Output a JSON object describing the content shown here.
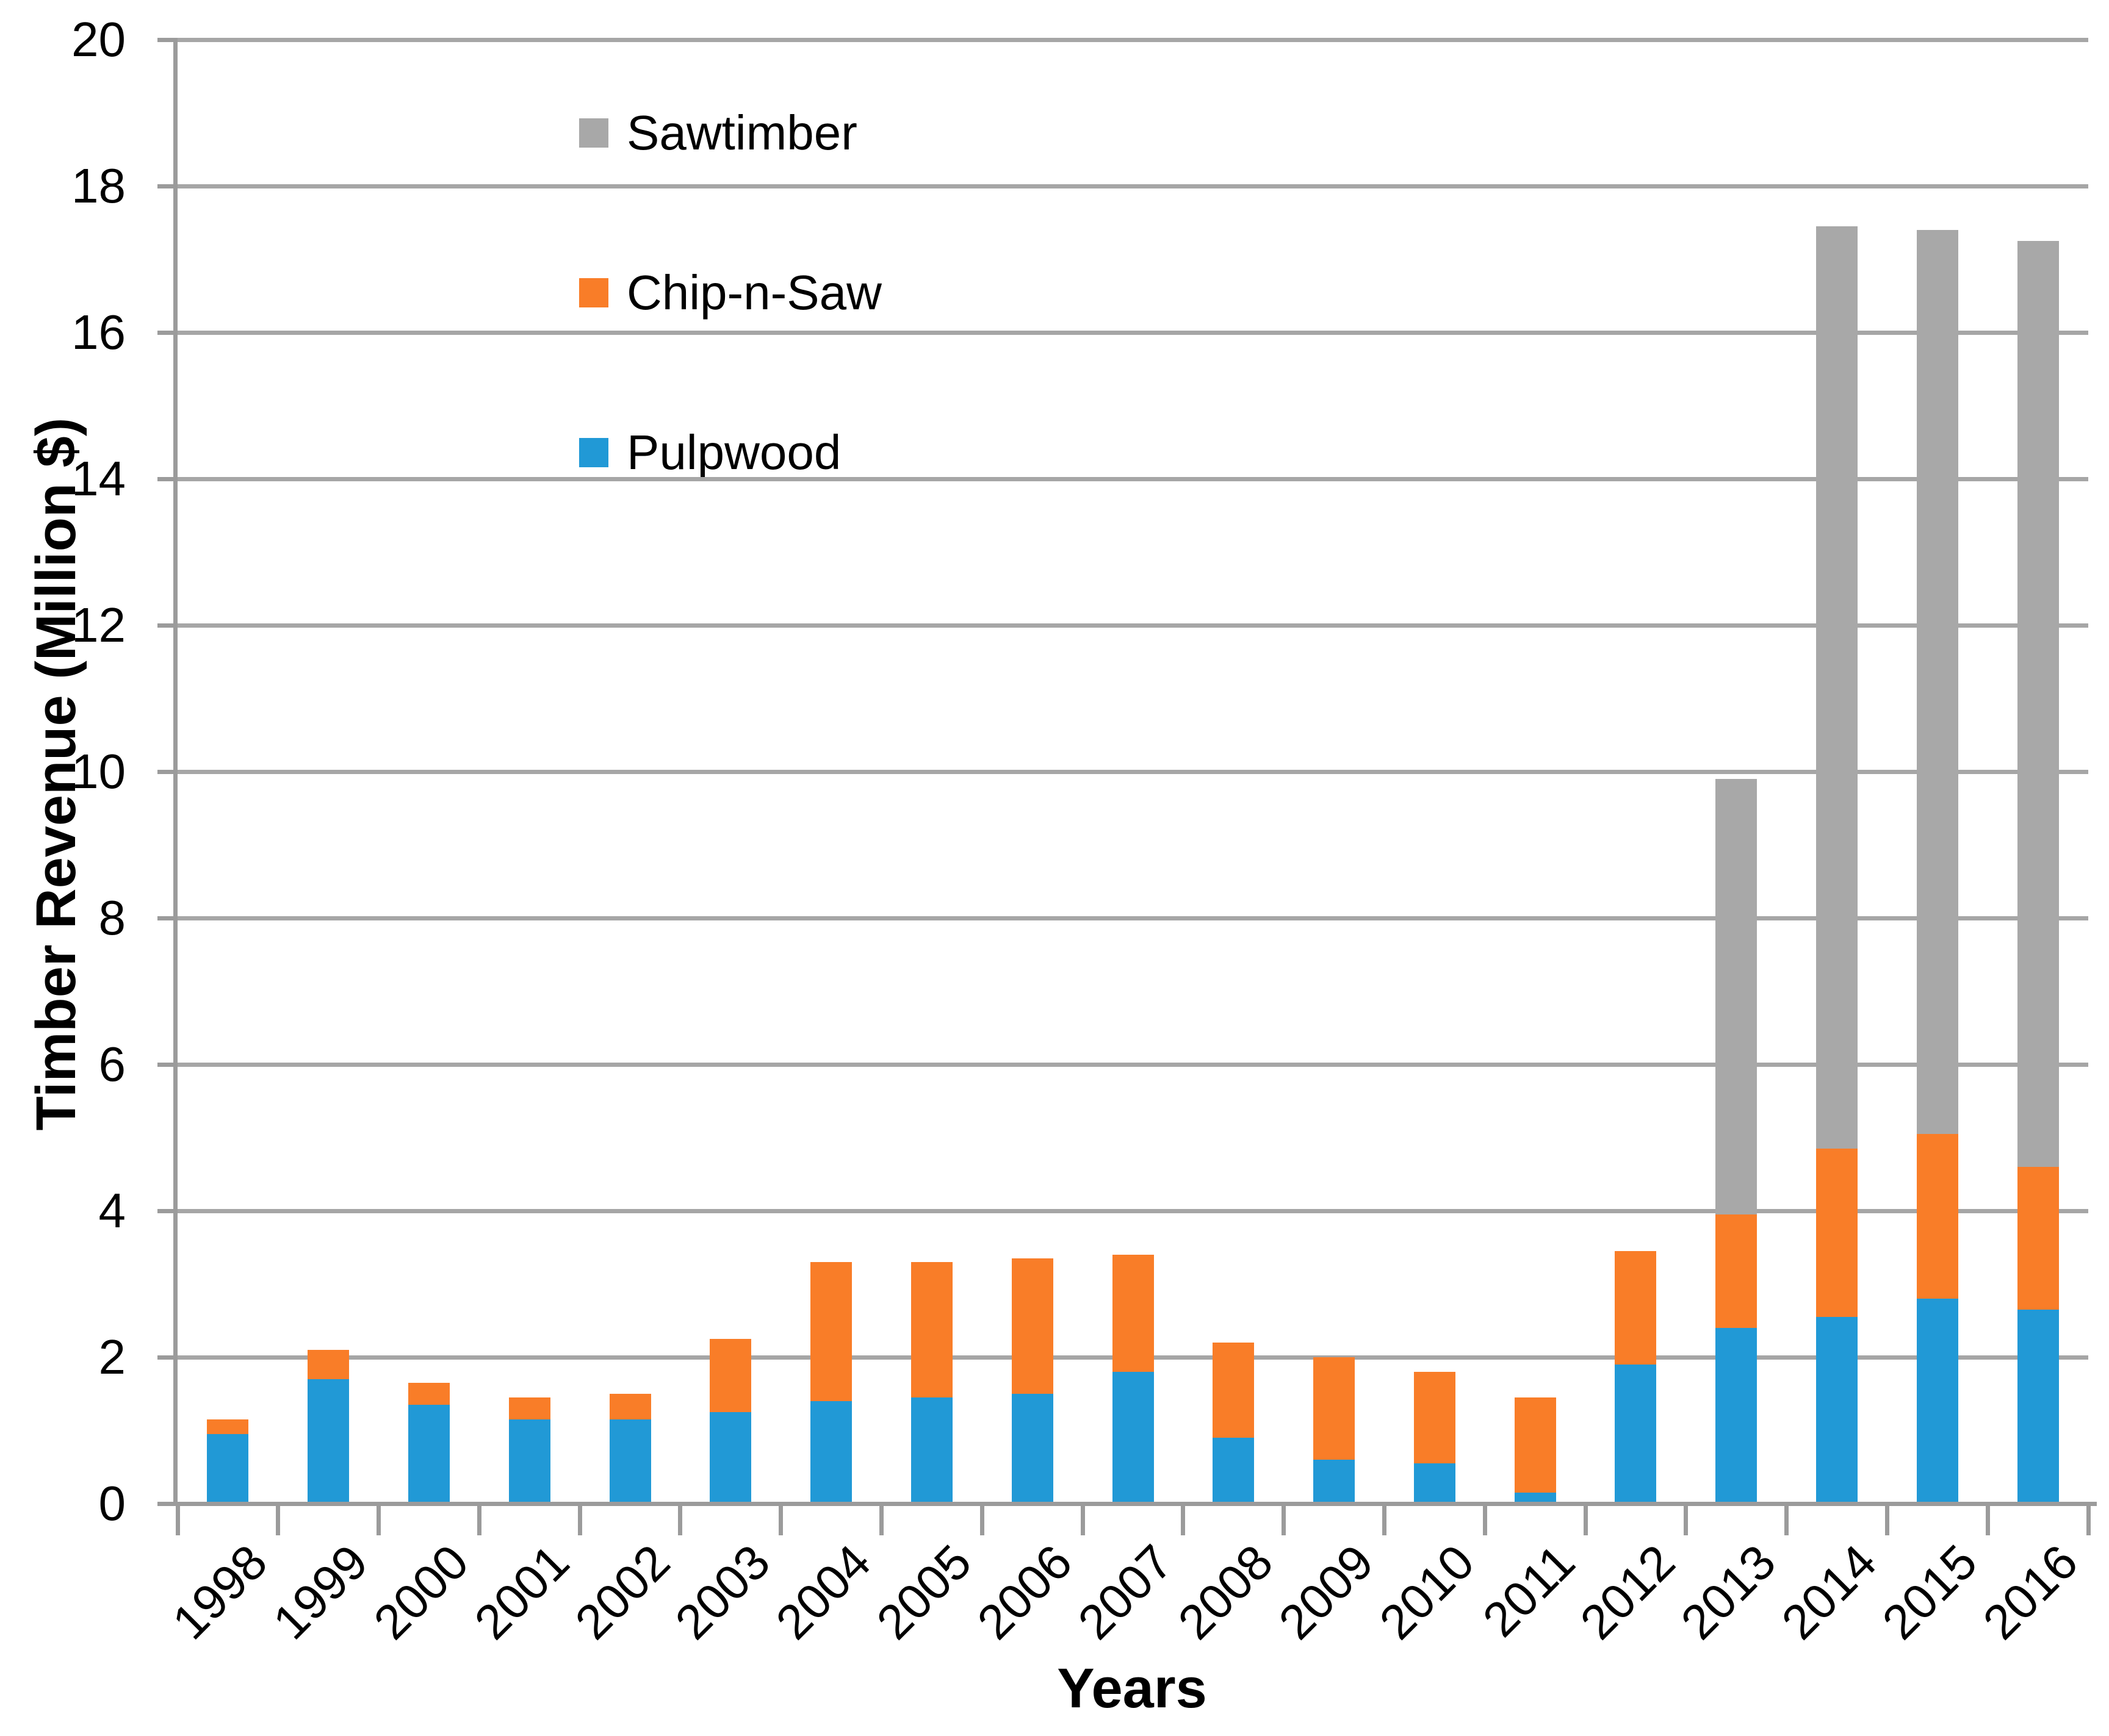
{
  "chart_data": {
    "type": "bar",
    "stacked": true,
    "title": "",
    "xlabel": "Years",
    "ylabel": "Timber Revenue (Million $)",
    "categories": [
      "1998",
      "1999",
      "2000",
      "2001",
      "2002",
      "2003",
      "2004",
      "2005",
      "2006",
      "2007",
      "2008",
      "2009",
      "2010",
      "2011",
      "2012",
      "2013",
      "2014",
      "2015",
      "2016"
    ],
    "series": [
      {
        "name": "Pulpwood",
        "color": "#2199D6",
        "values": [
          0.95,
          1.7,
          1.35,
          1.15,
          1.15,
          1.25,
          1.4,
          1.45,
          1.5,
          1.8,
          0.9,
          0.6,
          0.55,
          0.15,
          1.9,
          2.4,
          2.55,
          2.8,
          2.65
        ]
      },
      {
        "name": "Chip-n-Saw",
        "color": "#F97D28",
        "values": [
          0.2,
          0.4,
          0.3,
          0.3,
          0.35,
          1.0,
          1.9,
          1.85,
          1.85,
          1.6,
          1.3,
          1.4,
          1.25,
          1.3,
          1.55,
          1.55,
          2.3,
          2.25,
          1.95
        ]
      },
      {
        "name": "Sawtimber",
        "color": "#A8A8A8",
        "values": [
          0,
          0,
          0,
          0,
          0,
          0,
          0,
          0,
          0,
          0,
          0,
          0,
          0,
          0,
          0,
          5.95,
          12.6,
          12.35,
          12.65
        ]
      }
    ],
    "totals": [
      1.15,
      2.1,
      1.65,
      1.45,
      1.5,
      2.25,
      3.3,
      3.3,
      3.35,
      3.4,
      2.2,
      2.0,
      1.8,
      1.45,
      3.45,
      9.9,
      17.45,
      17.4,
      17.25
    ],
    "ylim": [
      0,
      20
    ],
    "ytick_step": 2,
    "ytick_labels": [
      "0",
      "2",
      "4",
      "6",
      "8",
      "10",
      "12",
      "14",
      "16",
      "18",
      "20"
    ],
    "grid": true,
    "legend_position": "inside-top-left",
    "legend_order_top_to_bottom": [
      "Sawtimber",
      "Chip-n-Saw",
      "Pulpwood"
    ],
    "axis_color": "#9B9B9B",
    "grid_color": "#A6A6A6"
  }
}
